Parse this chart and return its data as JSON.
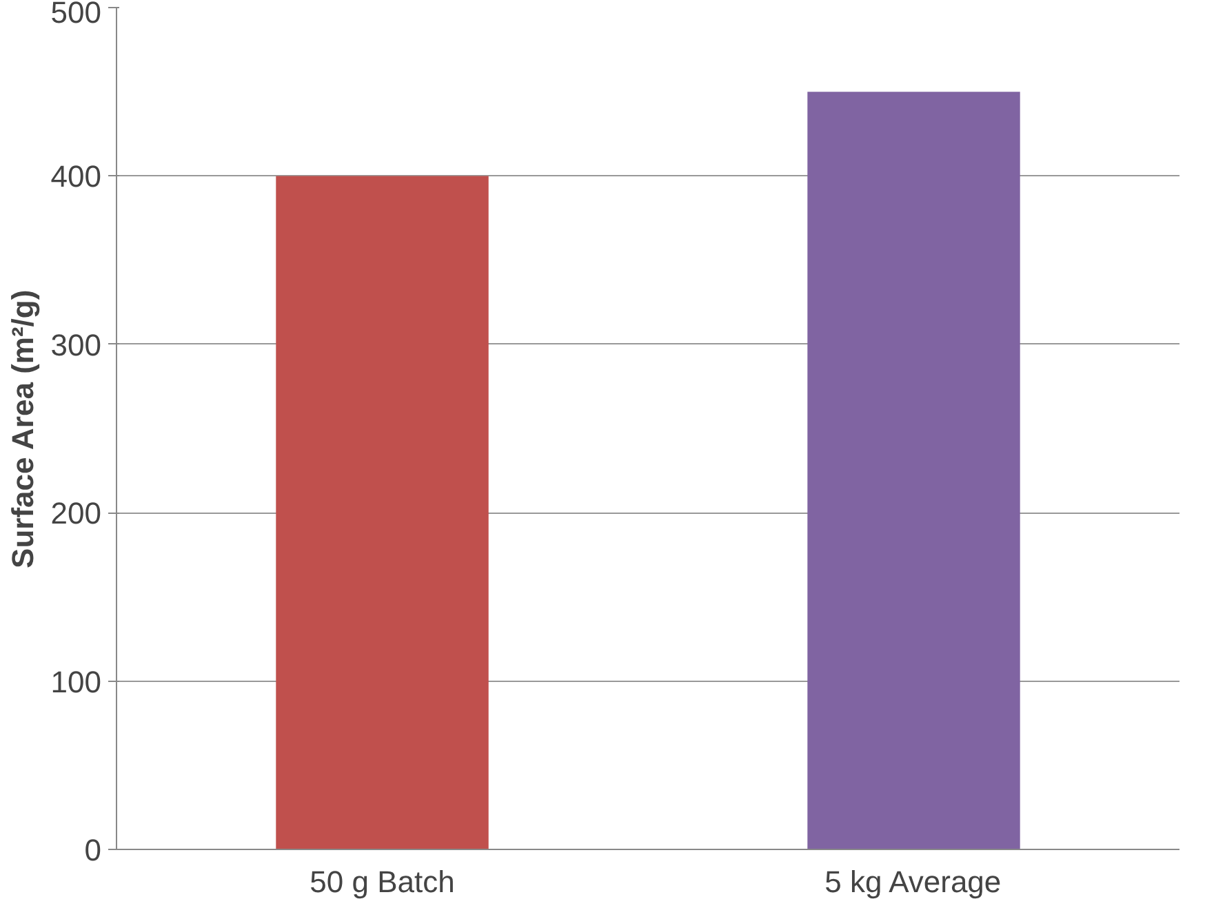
{
  "chart_data": {
    "type": "bar",
    "ylabel": "Surface Area (m²/g)",
    "categories": [
      "50 g Batch",
      "5 kg Average"
    ],
    "values": [
      400,
      450
    ],
    "colors": [
      "#c0504d",
      "#8064a2"
    ],
    "ylim": [
      0,
      500
    ],
    "yticks": [
      0,
      100,
      200,
      300,
      400,
      500
    ],
    "grid": "y"
  }
}
